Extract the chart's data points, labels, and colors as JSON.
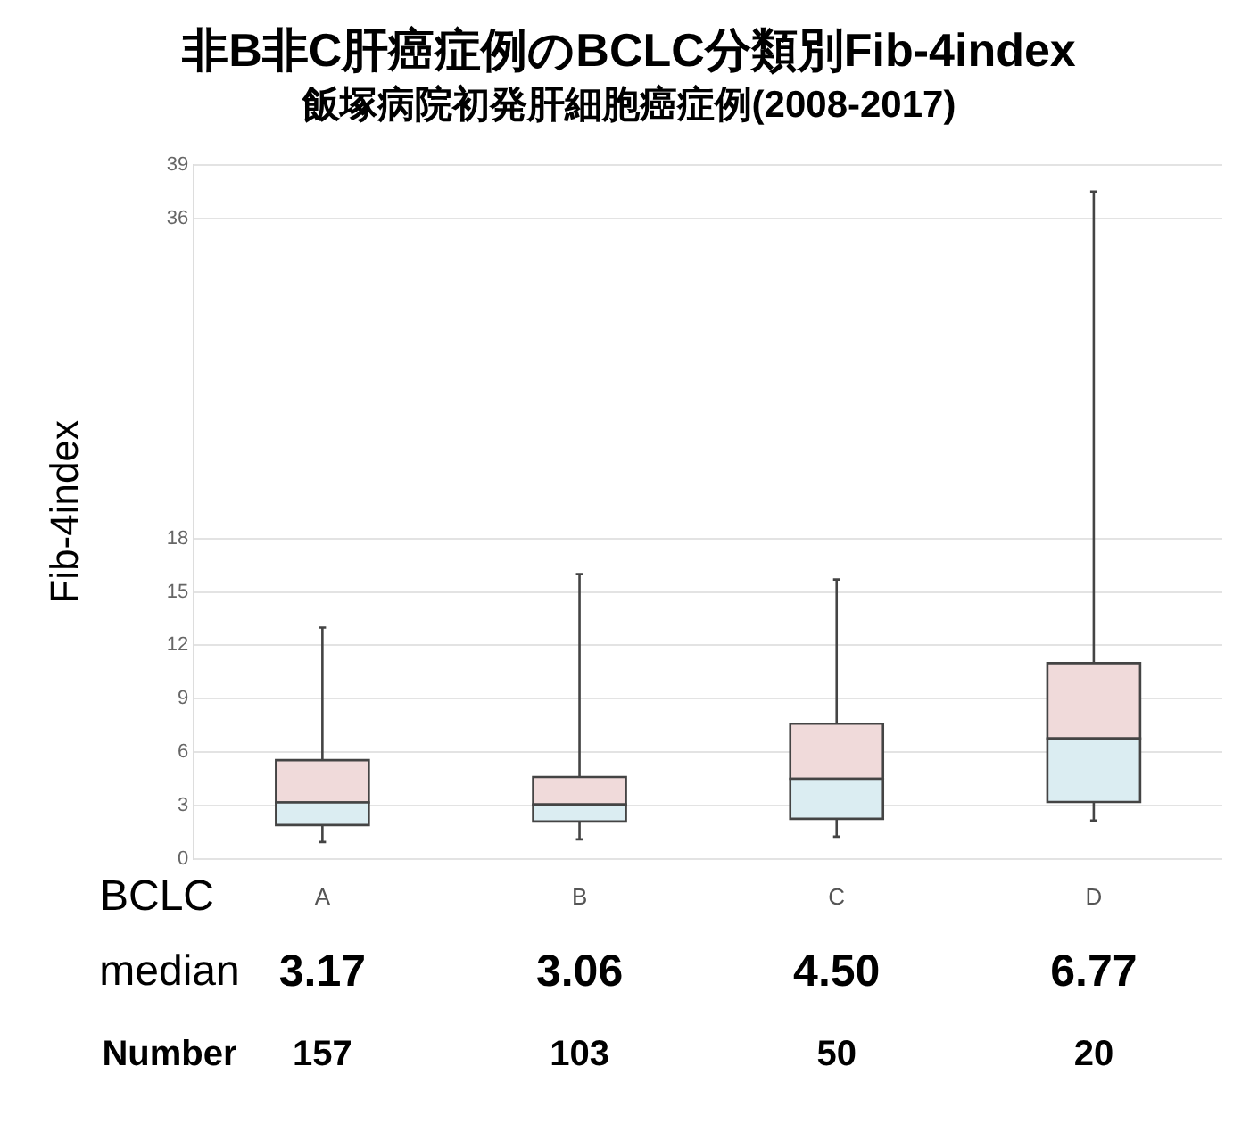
{
  "chart_data": {
    "type": "box",
    "title": "非B非C肝癌症例のBCLC分類別Fib-4index",
    "subtitle": "飯塚病院初発肝細胞癌症例(2008-2017)",
    "ylabel": "Fib-4index",
    "xlabel": "BCLC",
    "categories": [
      "A",
      "B",
      "C",
      "D"
    ],
    "series": [
      {
        "color": "#f0dada",
        "colors": [
          "#dbedf2",
          "#dbedf2",
          "#dbedf2",
          "#dbedf2"
        ],
        "value_labels": [
          "3.17",
          "3.06",
          "4.50",
          "6.77"
        ],
        "boxes": [
          {
            "low": 0.95,
            "q1": 1.9,
            "median": 3.17,
            "q3": 5.55,
            "high": 13.0
          },
          {
            "low": 1.1,
            "q1": 2.1,
            "median": 3.06,
            "q3": 4.6,
            "high": 16.0
          },
          {
            "low": 1.25,
            "q1": 2.25,
            "median": 4.5,
            "q3": 7.6,
            "high": 15.7
          },
          {
            "low": 2.15,
            "q1": 3.2,
            "median": 6.77,
            "q3": 11.0,
            "high": 37.5
          }
        ]
      }
    ],
    "ylim": [
      0,
      39
    ],
    "yticks": [
      0,
      3,
      6,
      9,
      12,
      15,
      18,
      36,
      39
    ],
    "grid": "y",
    "legend": false,
    "annotations": [
      "median",
      "Number",
      "157",
      "103",
      "50",
      "20"
    ]
  }
}
